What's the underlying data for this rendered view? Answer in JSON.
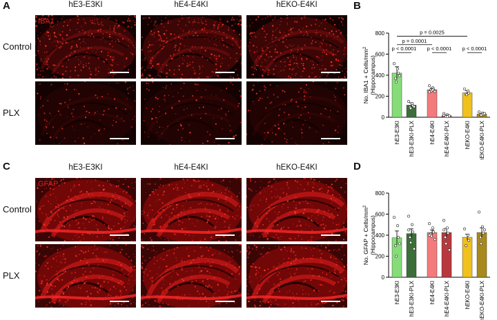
{
  "panels": {
    "A": {
      "letter": "A",
      "stain": "IBA1",
      "columns": [
        "hE3-E3KI",
        "hE4-E4KI",
        "hEKO-E4KI"
      ],
      "rows": [
        "Control",
        "PLX"
      ]
    },
    "C": {
      "letter": "C",
      "stain": "GFAP",
      "columns": [
        "hE3-E3KI",
        "hE4-E4KI",
        "hEKO-E4KI"
      ],
      "rows": [
        "Control",
        "PLX"
      ]
    }
  },
  "chart_data": [
    {
      "panel": "B",
      "type": "bar",
      "ylabel_line1": "No. IBA1 + Cells/mm",
      "ylabel_sup": "2",
      "ylabel_line2": "(Hippocampus)",
      "ylim": [
        0,
        800
      ],
      "yticks": [
        0,
        200,
        400,
        600,
        800
      ],
      "categories": [
        "hE3-E3KI",
        "hE3-E3KI-PLX",
        "hE4-E4KI",
        "hE4-E4KI-PLX",
        "hEKO-E4KI",
        "hEKO-E4KI-PLX"
      ],
      "values": [
        420,
        115,
        262,
        15,
        232,
        30
      ],
      "errors": [
        60,
        22,
        15,
        6,
        20,
        6
      ],
      "colors": [
        "#86dd78",
        "#3d6e3a",
        "#f47b7b",
        "#b8393d",
        "#f0c01c",
        "#a88a1c"
      ],
      "points": [
        [
          510,
          460,
          420,
          370,
          335,
          395
        ],
        [
          150,
          130,
          110,
          95,
          85,
          100
        ],
        [
          300,
          280,
          270,
          260,
          250,
          245,
          240,
          260
        ],
        [
          35,
          25,
          15,
          10,
          8,
          12,
          18,
          5
        ],
        [
          270,
          250,
          230,
          220,
          215
        ],
        [
          50,
          40,
          30,
          25,
          20,
          35
        ]
      ],
      "comparisons": [
        {
          "label": "p = 0.0025",
          "from": 0,
          "to": 4,
          "y": 770
        },
        {
          "label": "p = 0.0001",
          "from": 0,
          "to": 2,
          "y": 690
        },
        {
          "label": "p < 0.0001",
          "from": 0,
          "to": 1,
          "y": 615
        },
        {
          "label": "p < 0.0001",
          "from": 2,
          "to": 3,
          "y": 615
        },
        {
          "label": "p < 0.0001",
          "from": 4,
          "to": 5,
          "y": 615
        }
      ]
    },
    {
      "panel": "D",
      "type": "bar",
      "ylabel_line1": "No. GFAP + Cells/mm",
      "ylabel_sup": "2",
      "ylabel_line2": "(Hippocampus)",
      "ylim": [
        0,
        800
      ],
      "yticks": [
        0,
        200,
        400,
        600,
        800
      ],
      "categories": [
        "hE3-E3KI",
        "hE3-E3KI-PLX",
        "hE4-E4KI",
        "hE4-E4KI-PLX",
        "hEKO-E4KI",
        "hEKO-E4KI-PLX"
      ],
      "values": [
        375,
        415,
        425,
        425,
        380,
        425
      ],
      "errors": [
        65,
        45,
        25,
        40,
        30,
        45
      ],
      "colors": [
        "#86dd78",
        "#3d6e3a",
        "#f47b7b",
        "#b8393d",
        "#f0c01c",
        "#a88a1c"
      ],
      "points": [
        [
          570,
          490,
          380,
          300,
          200,
          320
        ],
        [
          580,
          500,
          430,
          380,
          330,
          270,
          450
        ],
        [
          510,
          470,
          430,
          410,
          390,
          360,
          400
        ],
        [
          540,
          470,
          420,
          380,
          320,
          260,
          450
        ],
        [
          460,
          400,
          350,
          300
        ],
        [
          620,
          480,
          420,
          380,
          320,
          450
        ]
      ]
    }
  ]
}
